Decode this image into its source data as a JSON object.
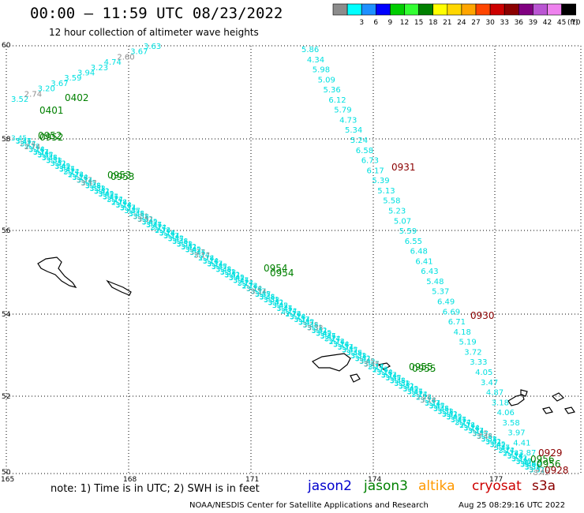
{
  "header": {
    "title": "00:00 – 11:59 UTC 08/23/2022",
    "subtitle": "12 hour collection of altimeter wave heights"
  },
  "legend": {
    "unit": "(ft)",
    "bins": [
      {
        "label": "",
        "color": "#8c8c8c"
      },
      {
        "label": "3",
        "color": "#00ffff"
      },
      {
        "label": "6",
        "color": "#1e90ff"
      },
      {
        "label": "9",
        "color": "#0000ff"
      },
      {
        "label": "12",
        "color": "#00cd00"
      },
      {
        "label": "15",
        "color": "#32ff32"
      },
      {
        "label": "18",
        "color": "#008000"
      },
      {
        "label": "21",
        "color": "#ffff00"
      },
      {
        "label": "24",
        "color": "#ffd700"
      },
      {
        "label": "27",
        "color": "#ffa500"
      },
      {
        "label": "30",
        "color": "#ff4500"
      },
      {
        "label": "33",
        "color": "#cd0000"
      },
      {
        "label": "36",
        "color": "#8b0000"
      },
      {
        "label": "39",
        "color": "#800080"
      },
      {
        "label": "42",
        "color": "#ba55d3"
      },
      {
        "label": "45",
        "color": "#ee82ee"
      },
      {
        "label": "70",
        "color": "#000000"
      }
    ]
  },
  "axes": {
    "lat_ticks": [
      "60",
      "58",
      "56",
      "54",
      "52",
      "50"
    ],
    "lon_ticks": [
      "165",
      "168",
      "171",
      "174",
      "177"
    ]
  },
  "colors": {
    "swh_track": "#00e0e0",
    "jason3": "#008000",
    "cryosat": "#8b0000",
    "grey_low": "#8c8c8c"
  },
  "tracks": {
    "east_track_values": [
      "5.86",
      "4.34",
      "5.98",
      "5.09",
      "5.36",
      "6.12",
      "5.79",
      "4.73",
      "5.34",
      "5.24",
      "6.58",
      "6.73",
      "6.17",
      "5.39",
      "5.13",
      "5.58",
      "5.23",
      "5.07",
      "5.59",
      "6.55",
      "6.48",
      "6.41",
      "6.43",
      "5.48",
      "5.37",
      "6.49",
      "6.69",
      "6.71",
      "4.18",
      "5.19",
      "3.72",
      "3.33",
      "4.05",
      "3.47",
      "4.87",
      "3.18",
      "4.06",
      "3.58",
      "3.97",
      "4.41",
      "3.87",
      "4.40"
    ],
    "nw_track_values": [
      "3.52",
      "2.74",
      "3.20",
      "3.67",
      "3.59",
      "3.94",
      "3.23",
      "4.74",
      "2.60",
      "3.67",
      "3.63"
    ],
    "nw_track_colors": [
      "#00e0e0",
      "#8c8c8c",
      "#00e0e0",
      "#00e0e0",
      "#00e0e0",
      "#00e0e0",
      "#00e0e0",
      "#00e0e0",
      "#8c8c8c",
      "#00e0e0",
      "#00e0e0"
    ],
    "diag_track_head": [
      "3.45",
      "3.17",
      "2.74",
      "3.18",
      "3.14",
      "3.37",
      "3.45",
      "3.38",
      "3.51",
      "3.42"
    ]
  },
  "pass_labels": [
    {
      "text": "0402",
      "color": "#008000"
    },
    {
      "text": "0401",
      "color": "#008000"
    },
    {
      "text": "0952",
      "color": "#008000"
    },
    {
      "text": "0952",
      "color": "#008000"
    },
    {
      "text": "0953",
      "color": "#008000"
    },
    {
      "text": "0953",
      "color": "#008000"
    },
    {
      "text": "0954",
      "color": "#008000"
    },
    {
      "text": "0954",
      "color": "#008000"
    },
    {
      "text": "0955",
      "color": "#008000"
    },
    {
      "text": "0955",
      "color": "#008000"
    },
    {
      "text": "0956",
      "color": "#008000"
    },
    {
      "text": "0956",
      "color": "#008000"
    },
    {
      "text": "0931",
      "color": "#8b0000"
    },
    {
      "text": "0930",
      "color": "#8b0000"
    },
    {
      "text": "0929",
      "color": "#8b0000"
    },
    {
      "text": "0928",
      "color": "#8b0000"
    }
  ],
  "footer": {
    "note": "note:  1) Time is in UTC;  2) SWH is in feet",
    "satellites": [
      {
        "name": "jason2",
        "color": "#0000cd"
      },
      {
        "name": "jason3",
        "color": "#008000"
      },
      {
        "name": "altika",
        "color": "#ff9900"
      },
      {
        "name": "cryosat",
        "color": "#cd0000"
      },
      {
        "name": "s3a",
        "color": "#8b0000"
      }
    ],
    "credit": "NOAA/NESDIS Center for Satellite Applications and Research",
    "timestamp": "Aug 25 08:29:16 UTC 2022"
  }
}
